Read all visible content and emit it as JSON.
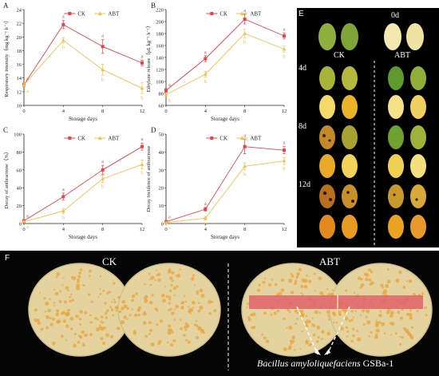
{
  "panels": [
    {
      "letter": "A",
      "ylabel": "Respiratory intensity（mg kg⁻¹ h⁻¹）",
      "xlabel": "Storage days"
    },
    {
      "letter": "B",
      "ylabel": "Ethylene release（μL kg⁻¹ h⁻¹）",
      "xlabel": "Storage days"
    },
    {
      "letter": "C",
      "ylabel": "Decay of anthracnose（%）",
      "xlabel": "Storage days"
    },
    {
      "letter": "D",
      "ylabel": "Decay incidence of anthracnose",
      "xlabel": "Storage days"
    }
  ],
  "photo_e": {
    "letter": "E",
    "rows": [
      "0d",
      "4d",
      "8d",
      "12d"
    ],
    "group_ck": "CK",
    "group_abt": "ABT"
  },
  "photo_f": {
    "letter": "F",
    "left_label": "CK",
    "right_label": "ABT",
    "species": "Bacillus amyloliquefaciens",
    "strain": "GSBa-1"
  },
  "colors": {
    "ck": "#e8414a",
    "abt": "#f2c14e",
    "mango_green": "#7da43a",
    "mango_yellow": "#e8b42a",
    "plate": "#e7d9a8",
    "colony": "#e8a640",
    "streak": "#e0616b"
  },
  "chart_data": [
    {
      "type": "line",
      "panel": "A",
      "x": [
        0,
        4,
        8,
        12
      ],
      "xticks": [
        "0",
        "4",
        "8",
        "12"
      ],
      "ylim": [
        10,
        24
      ],
      "yticks": [
        10,
        12,
        14,
        16,
        18,
        20,
        22,
        24
      ],
      "series": [
        {
          "name": "CK",
          "values": [
            13.0,
            21.8,
            18.6,
            16.2
          ],
          "err": [
            0.3,
            0.6,
            1.0,
            0.4
          ],
          "letters": [
            "a",
            "a",
            "a",
            "a"
          ]
        },
        {
          "name": "ABT",
          "values": [
            13.0,
            19.5,
            15.2,
            12.5
          ],
          "err": [
            0.3,
            0.4,
            0.8,
            0.8
          ],
          "letters": [
            "a",
            "b",
            "b",
            "b"
          ]
        }
      ]
    },
    {
      "type": "line",
      "panel": "B",
      "x": [
        0,
        4,
        8,
        12
      ],
      "xticks": [
        "0",
        "4",
        "8",
        "12"
      ],
      "ylim": [
        60,
        220
      ],
      "yticks": [
        60,
        80,
        100,
        120,
        140,
        160,
        180,
        200,
        220
      ],
      "series": [
        {
          "name": "CK",
          "values": [
            85,
            138,
            204,
            176
          ],
          "err": [
            3,
            5,
            8,
            5
          ],
          "letters": [
            "a",
            "a",
            "a",
            "a"
          ]
        },
        {
          "name": "ABT",
          "values": [
            78,
            112,
            180,
            154
          ],
          "err": [
            3,
            5,
            7,
            5
          ],
          "letters": [
            "b",
            "b",
            "b",
            "b"
          ]
        }
      ]
    },
    {
      "type": "line",
      "panel": "C",
      "x": [
        0,
        4,
        8,
        12
      ],
      "xticks": [
        "0",
        "4",
        "8",
        "12"
      ],
      "ylim": [
        0,
        100
      ],
      "yticks": [
        0,
        20,
        40,
        60,
        80,
        100
      ],
      "series": [
        {
          "name": "CK",
          "values": [
            3,
            30,
            60,
            86
          ],
          "err": [
            1,
            4,
            5,
            4
          ],
          "letters": [
            "a",
            "a",
            "a",
            "a"
          ]
        },
        {
          "name": "ABT",
          "values": [
            2,
            14,
            50,
            66
          ],
          "err": [
            1,
            3,
            4,
            5
          ],
          "letters": [
            "a",
            "b",
            "b",
            "b"
          ]
        }
      ]
    },
    {
      "type": "line",
      "panel": "D",
      "x": [
        0,
        4,
        8,
        12
      ],
      "xticks": [
        "0",
        "4",
        "8",
        "12"
      ],
      "ylim": [
        0,
        50
      ],
      "yticks": [
        0,
        10,
        20,
        30,
        40,
        50
      ],
      "series": [
        {
          "name": "CK",
          "values": [
            1,
            8,
            43,
            41
          ],
          "err": [
            0.5,
            1,
            4,
            2
          ],
          "letters": [
            "a",
            "a",
            "a",
            "a"
          ]
        },
        {
          "name": "ABT",
          "values": [
            0.5,
            3,
            32,
            35
          ],
          "err": [
            0.5,
            1,
            2,
            2
          ],
          "letters": [
            "a",
            "b",
            "b",
            "b"
          ]
        }
      ]
    }
  ]
}
